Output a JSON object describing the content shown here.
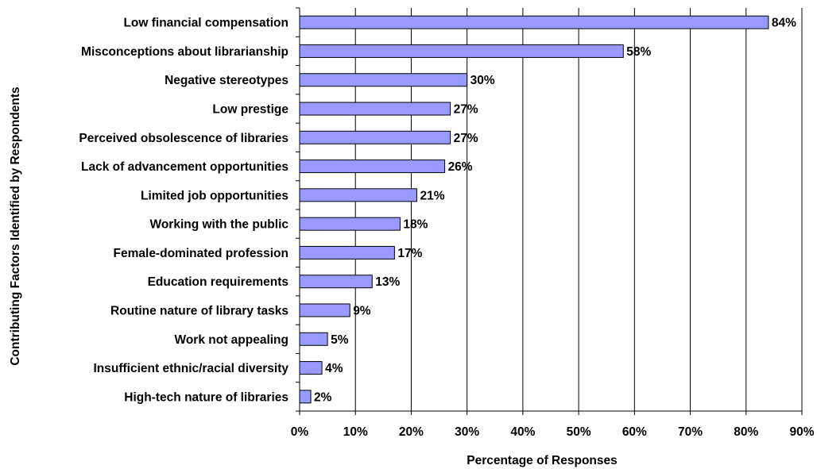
{
  "chart_data": {
    "type": "bar",
    "orientation": "horizontal",
    "categories": [
      "Low financial compensation",
      "Misconceptions about librarianship",
      "Negative stereotypes",
      "Low prestige",
      "Perceived obsolescence of libraries",
      "Lack of advancement opportunities",
      "Limited job opportunities",
      "Working with the public",
      "Female-dominated profession",
      "Education requirements",
      "Routine nature of library tasks",
      "Work not appealing",
      "Insufficient ethnic/racial diversity",
      "High-tech nature of libraries"
    ],
    "values": [
      84,
      58,
      30,
      27,
      27,
      26,
      21,
      18,
      17,
      13,
      9,
      5,
      4,
      2
    ],
    "data_labels": [
      "84%",
      "58%",
      "30%",
      "27%",
      "27%",
      "26%",
      "21%",
      "18%",
      "17%",
      "13%",
      "9%",
      "5%",
      "4%",
      "2%"
    ],
    "title": "",
    "xlabel": "Percentage of Responses",
    "ylabel": "Contributing Factors Identified by Respondents",
    "xlim": [
      0,
      90
    ],
    "x_ticks": [
      0,
      10,
      20,
      30,
      40,
      50,
      60,
      70,
      80,
      90
    ],
    "x_tick_labels": [
      "0%",
      "10%",
      "20%",
      "30%",
      "40%",
      "50%",
      "60%",
      "70%",
      "80%",
      "90%"
    ],
    "grid": "vertical",
    "legend": "none",
    "bar_color": "#9999ff",
    "bar_edge_color": "#000000"
  }
}
